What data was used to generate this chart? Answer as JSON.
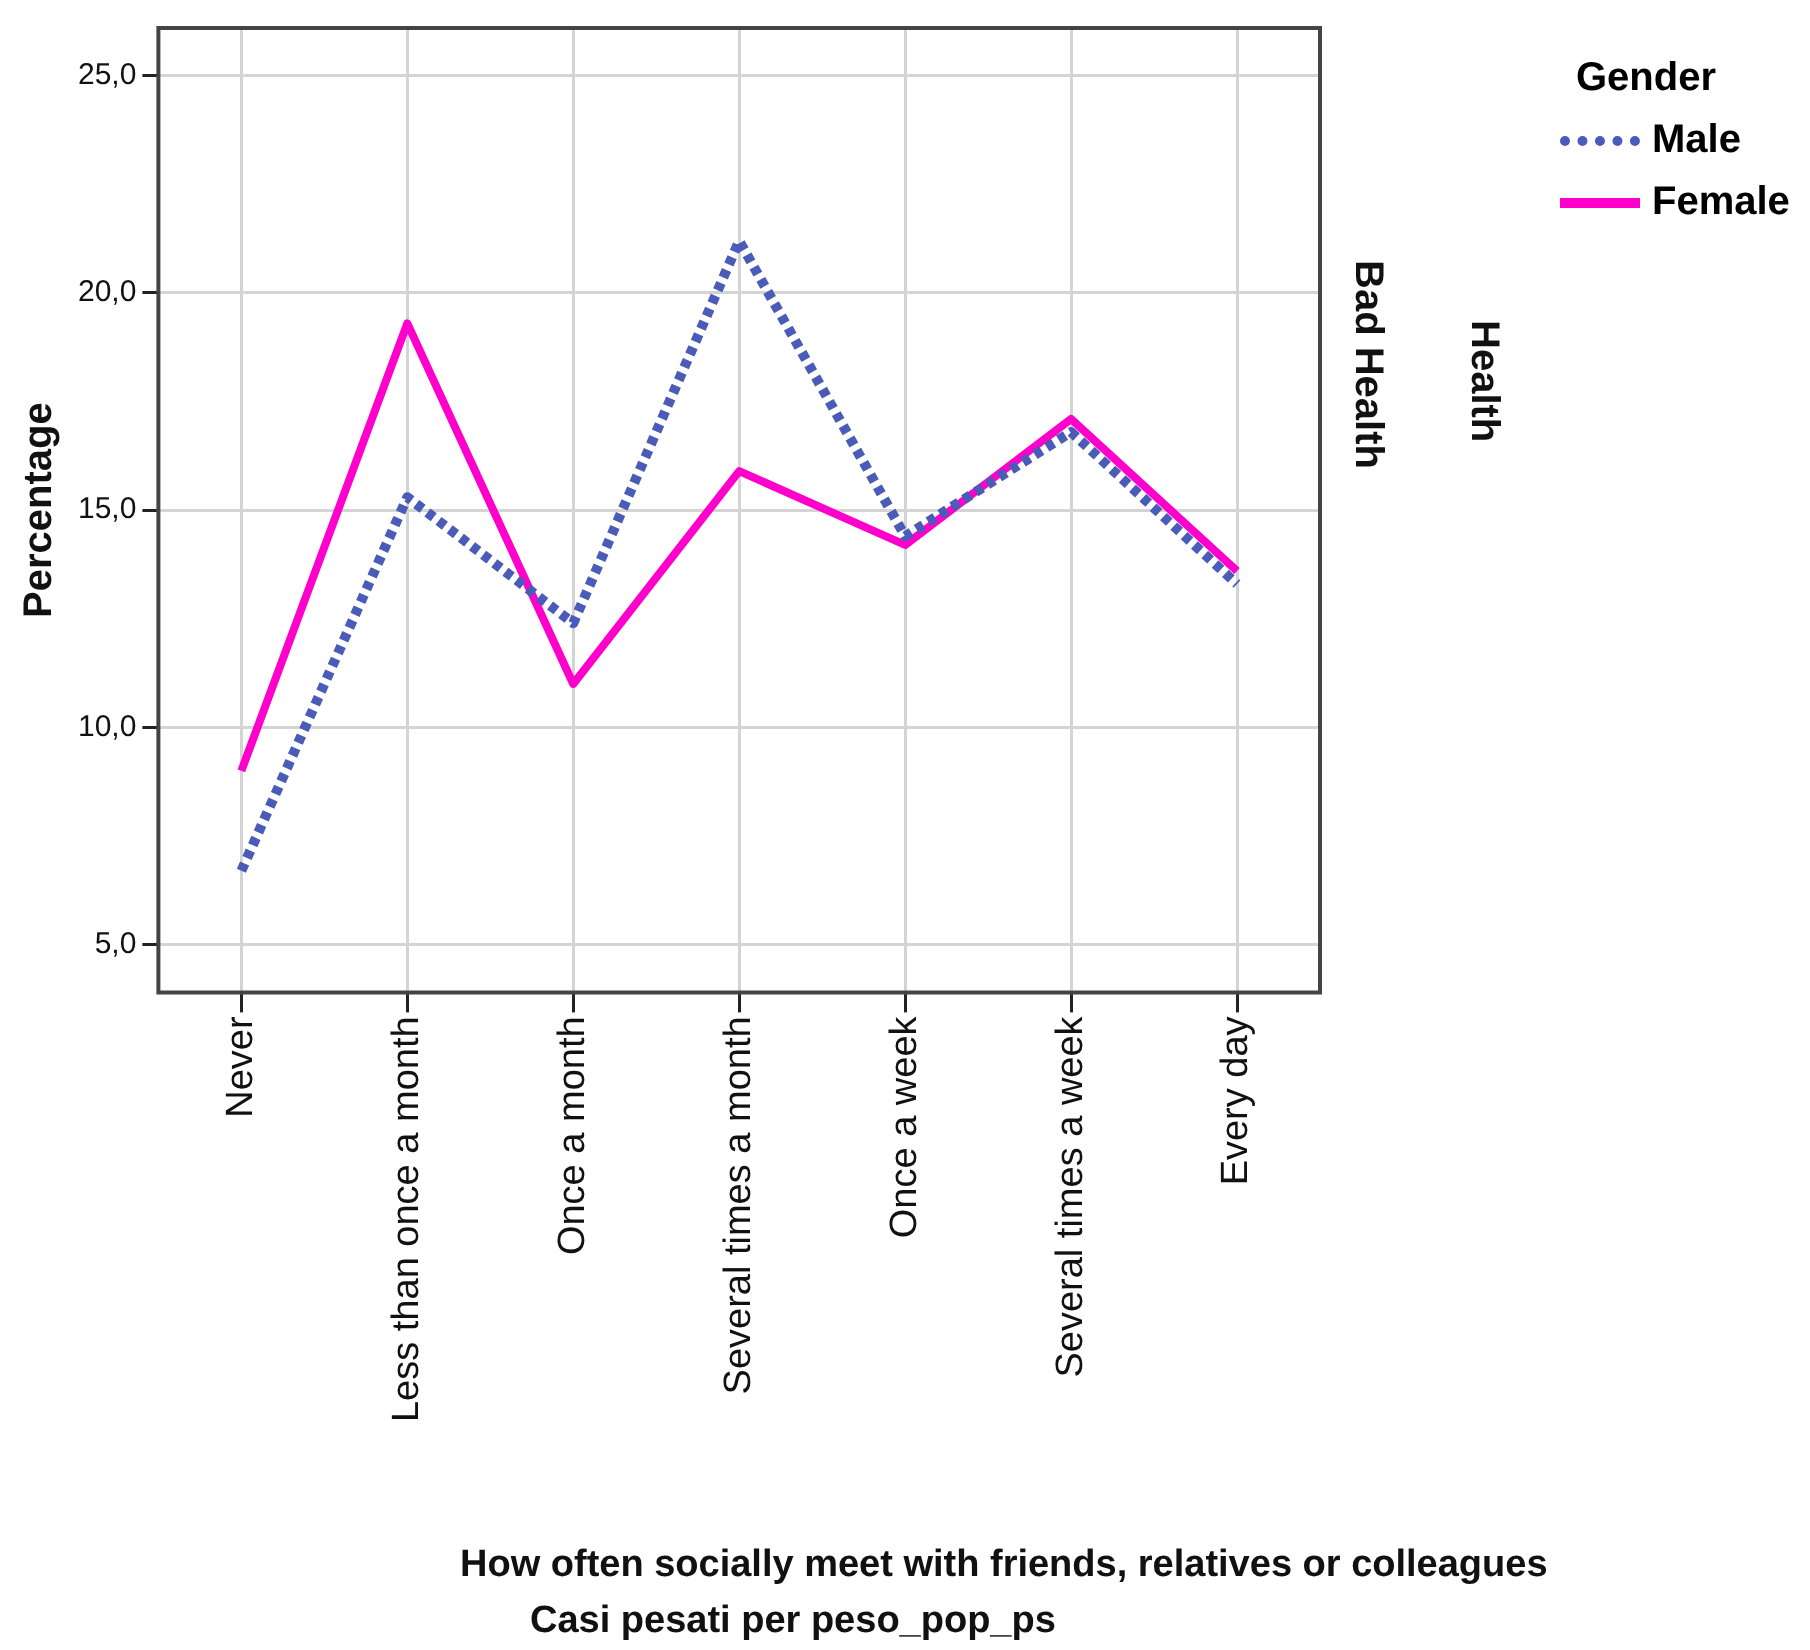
{
  "chart_data": {
    "type": "line",
    "xlabel": "How often socially meet with friends, relatives or colleagues",
    "ylabel": "Percentage",
    "legend_title": "Gender",
    "legend": "top right",
    "grid": true,
    "marker": "none",
    "categories": [
      "Never",
      "Less than once a month",
      "Once a month",
      "Several times a month",
      "Once a week",
      "Several times a week",
      "Every day"
    ],
    "ylim": [
      3.9,
      26.1
    ],
    "yticks": [
      {
        "value": 5,
        "label": "5,0"
      },
      {
        "value": 10,
        "label": "10,0"
      },
      {
        "value": 15,
        "label": "15,0"
      },
      {
        "value": 20,
        "label": "20,0"
      },
      {
        "value": 25,
        "label": "25,0"
      }
    ],
    "series": [
      {
        "name": "Male",
        "color": "#4a5cb8",
        "line_style": "dotted",
        "values": [
          6.7,
          15.3,
          12.4,
          21.2,
          14.4,
          16.8,
          13.3
        ]
      },
      {
        "name": "Female",
        "color": "#ff00cc",
        "line_style": "solid",
        "values": [
          9.0,
          19.3,
          11.0,
          15.9,
          14.2,
          17.1,
          13.6
        ]
      }
    ],
    "annotations": [
      "Health",
      "Bad Health",
      "Casi pesati per peso_pop_ps"
    ]
  }
}
